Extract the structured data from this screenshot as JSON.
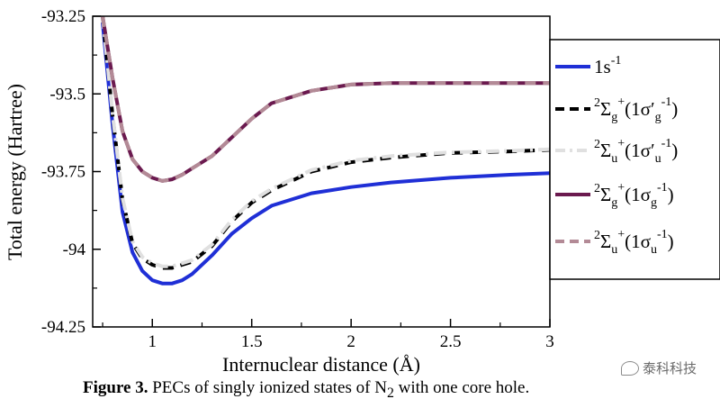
{
  "chart_data": {
    "type": "line",
    "xlabel": "Internuclear distance (Å)",
    "ylabel": "Total energy (Hartree)",
    "xlim": [
      0.7,
      3.0
    ],
    "ylim": [
      -94.25,
      -93.25
    ],
    "xticks": [
      "1",
      "1.5",
      "2",
      "2.5",
      "3"
    ],
    "xtick_values": [
      1,
      1.5,
      2,
      2.5,
      3
    ],
    "yticks": [
      "-93.25",
      "-93.5",
      "-93.75",
      "-94",
      "-94.25"
    ],
    "ytick_values": [
      -93.25,
      -93.5,
      -93.75,
      -94,
      -94.25
    ],
    "grid": false,
    "legend_position": "right (outside)",
    "x": [
      0.75,
      0.8,
      0.85,
      0.9,
      0.95,
      1.0,
      1.05,
      1.1,
      1.15,
      1.2,
      1.3,
      1.4,
      1.5,
      1.6,
      1.8,
      2.0,
      2.2,
      2.5,
      2.8,
      3.0
    ],
    "series": [
      {
        "name": "1s-1",
        "color": "#1f2fd6",
        "style": "solid",
        "values": [
          -93.27,
          -93.6,
          -93.88,
          -94.01,
          -94.07,
          -94.1,
          -94.11,
          -94.11,
          -94.1,
          -94.08,
          -94.02,
          -93.95,
          -93.9,
          -93.86,
          -93.82,
          -93.8,
          -93.785,
          -93.77,
          -93.76,
          -93.755
        ]
      },
      {
        "name": "2Σg+(1σ′g-1)",
        "color": "#000000",
        "style": "dashed",
        "values": [
          -93.25,
          -93.57,
          -93.84,
          -93.98,
          -94.03,
          -94.05,
          -94.06,
          -94.06,
          -94.05,
          -94.04,
          -93.99,
          -93.91,
          -93.85,
          -93.81,
          -93.75,
          -93.72,
          -93.705,
          -93.69,
          -93.685,
          -93.68
        ]
      },
      {
        "name": "2Σu+(1σ′u-1)",
        "color": "#e0e0e0",
        "style": "dashdot",
        "values": [
          -93.25,
          -93.565,
          -93.835,
          -93.975,
          -94.025,
          -94.045,
          -94.055,
          -94.055,
          -94.045,
          -94.035,
          -93.985,
          -93.905,
          -93.845,
          -93.805,
          -93.745,
          -93.715,
          -93.7,
          -93.688,
          -93.683,
          -93.678
        ]
      },
      {
        "name": "2Σg+(1σg-1)",
        "color": "#6b1a4f",
        "style": "solid",
        "values": [
          -93.25,
          -93.45,
          -93.62,
          -93.71,
          -93.75,
          -93.77,
          -93.78,
          -93.775,
          -93.76,
          -93.74,
          -93.7,
          -93.64,
          -93.58,
          -93.53,
          -93.49,
          -93.47,
          -93.465,
          -93.465,
          -93.465,
          -93.465
        ]
      },
      {
        "name": "2Σu+(1σu-1)",
        "color": "#b38a96",
        "style": "dashed",
        "values": [
          -93.25,
          -93.45,
          -93.62,
          -93.71,
          -93.75,
          -93.77,
          -93.78,
          -93.775,
          -93.76,
          -93.74,
          -93.7,
          -93.64,
          -93.58,
          -93.53,
          -93.49,
          -93.47,
          -93.465,
          -93.465,
          -93.465,
          -93.465
        ]
      }
    ]
  },
  "legend": [
    {
      "base": "1s",
      "sup1": "-1"
    },
    {
      "pre": "2",
      "base": "Σ",
      "sub": "g",
      "sup": "+",
      "paren": "(1σ′",
      "psub": "g",
      "psup": "-1",
      "close": ")"
    },
    {
      "pre": "2",
      "base": "Σ",
      "sub": "u",
      "sup": "+",
      "paren": "(1σ′",
      "psub": "u",
      "psup": "-1",
      "close": ")"
    },
    {
      "pre": "2",
      "base": "Σ",
      "sub": "g",
      "sup": "+",
      "paren": "(1σ",
      "psub": "g",
      "psup": "-1",
      "close": ")"
    },
    {
      "pre": "2",
      "base": "Σ",
      "sub": "u",
      "sup": "+",
      "paren": "(1σ",
      "psub": "u",
      "psup": "-1",
      "close": ")"
    }
  ],
  "caption": {
    "label": "Figure 3.",
    "text": "PECs of singly ionized states of N",
    "sub": "2",
    "tail": " with one core hole."
  },
  "watermark": "泰科科技"
}
